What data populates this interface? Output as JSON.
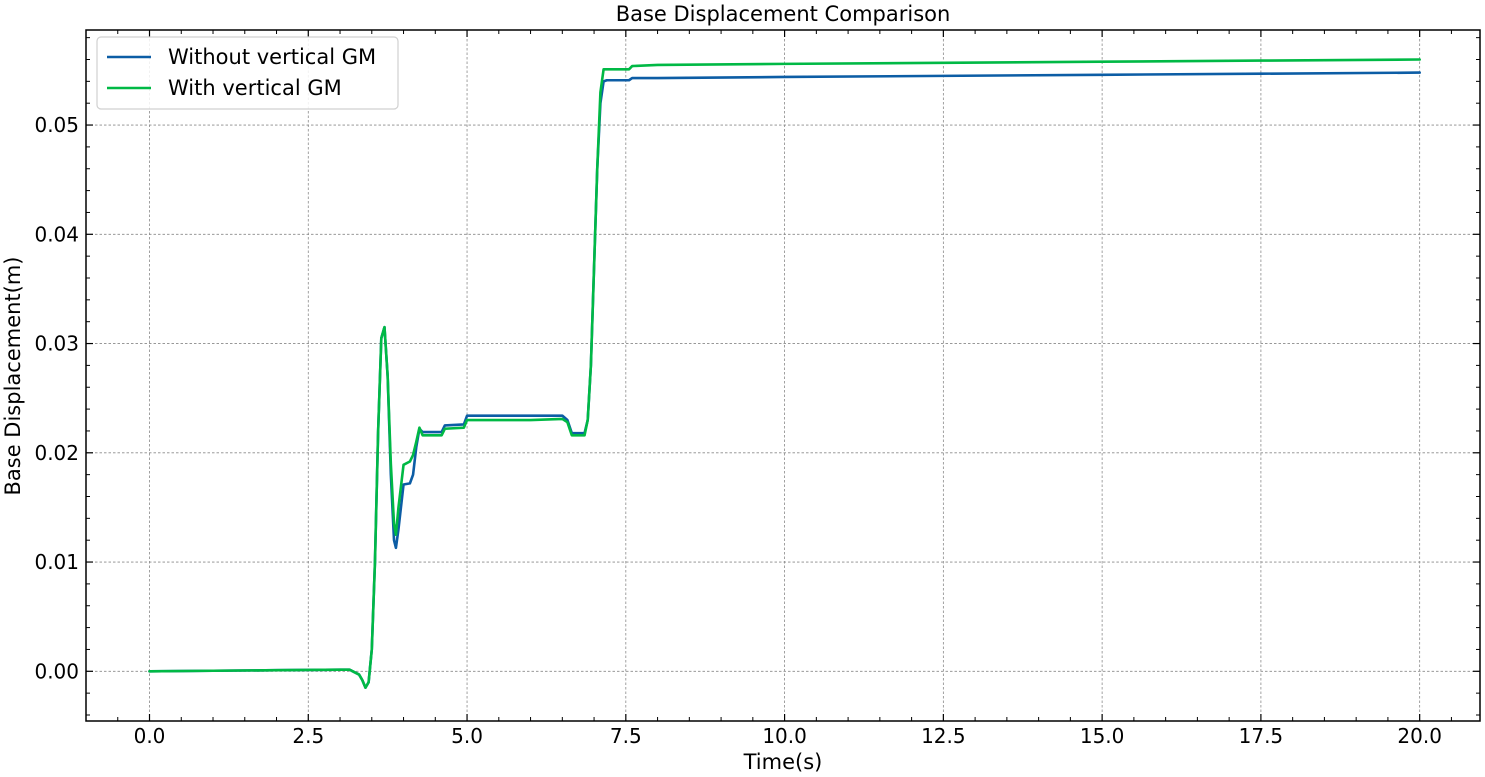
{
  "chart_data": {
    "type": "line",
    "title": "Base Displacement Comparison",
    "xlabel": "Time(s)",
    "ylabel": "Base Displacement(m)",
    "xlim": [
      -1.0,
      20.95
    ],
    "ylim": [
      -0.00455,
      0.0587
    ],
    "xticks": [
      0.0,
      2.5,
      5.0,
      7.5,
      10.0,
      12.5,
      15.0,
      17.5,
      20.0
    ],
    "xtick_labels": [
      "0.0",
      "2.5",
      "5.0",
      "7.5",
      "10.0",
      "12.5",
      "15.0",
      "17.5",
      "20.0"
    ],
    "yticks": [
      0.0,
      0.01,
      0.02,
      0.03,
      0.04,
      0.05
    ],
    "ytick_labels": [
      "0.00",
      "0.01",
      "0.02",
      "0.03",
      "0.04",
      "0.05"
    ],
    "grid": true,
    "legend_position": "top-left",
    "series": [
      {
        "name": "Without vertical GM",
        "color": "#0C5DA5",
        "points": [
          [
            0.0,
            0.0
          ],
          [
            1.0,
            5e-05
          ],
          [
            2.0,
            0.0001
          ],
          [
            3.0,
            0.00015
          ],
          [
            3.15,
            0.00015
          ],
          [
            3.2,
            0.0
          ],
          [
            3.3,
            -0.0003
          ],
          [
            3.35,
            -0.0008
          ],
          [
            3.4,
            -0.0015
          ],
          [
            3.45,
            -0.001
          ],
          [
            3.5,
            0.002
          ],
          [
            3.55,
            0.01
          ],
          [
            3.6,
            0.022
          ],
          [
            3.65,
            0.0305
          ],
          [
            3.7,
            0.0315
          ],
          [
            3.75,
            0.027
          ],
          [
            3.8,
            0.018
          ],
          [
            3.85,
            0.012
          ],
          [
            3.88,
            0.0113
          ],
          [
            3.92,
            0.013
          ],
          [
            4.0,
            0.0171
          ],
          [
            4.1,
            0.0172
          ],
          [
            4.15,
            0.018
          ],
          [
            4.2,
            0.0205
          ],
          [
            4.25,
            0.0222
          ],
          [
            4.3,
            0.0219
          ],
          [
            4.6,
            0.0219
          ],
          [
            4.65,
            0.0225
          ],
          [
            4.95,
            0.0226
          ],
          [
            5.0,
            0.0234
          ],
          [
            5.5,
            0.0234
          ],
          [
            6.0,
            0.0234
          ],
          [
            6.5,
            0.0234
          ],
          [
            6.58,
            0.023
          ],
          [
            6.65,
            0.0218
          ],
          [
            6.85,
            0.0218
          ],
          [
            6.9,
            0.023
          ],
          [
            6.95,
            0.028
          ],
          [
            7.0,
            0.037
          ],
          [
            7.05,
            0.046
          ],
          [
            7.1,
            0.052
          ],
          [
            7.15,
            0.054
          ],
          [
            7.2,
            0.0541
          ],
          [
            7.55,
            0.0541
          ],
          [
            7.6,
            0.0543
          ],
          [
            8.0,
            0.0543
          ],
          [
            10.0,
            0.0544
          ],
          [
            12.5,
            0.0545
          ],
          [
            15.0,
            0.0546
          ],
          [
            17.5,
            0.0547
          ],
          [
            20.0,
            0.0548
          ]
        ]
      },
      {
        "name": "With vertical GM",
        "color": "#00B945",
        "points": [
          [
            0.0,
            0.0
          ],
          [
            1.0,
            5e-05
          ],
          [
            2.0,
            0.0001
          ],
          [
            3.0,
            0.00015
          ],
          [
            3.15,
            0.00015
          ],
          [
            3.2,
            0.0
          ],
          [
            3.3,
            -0.0003
          ],
          [
            3.35,
            -0.0008
          ],
          [
            3.4,
            -0.0015
          ],
          [
            3.45,
            -0.001
          ],
          [
            3.5,
            0.002
          ],
          [
            3.55,
            0.01
          ],
          [
            3.6,
            0.022
          ],
          [
            3.65,
            0.0305
          ],
          [
            3.7,
            0.0315
          ],
          [
            3.75,
            0.027
          ],
          [
            3.8,
            0.019
          ],
          [
            3.85,
            0.0135
          ],
          [
            3.88,
            0.0125
          ],
          [
            3.92,
            0.015
          ],
          [
            4.0,
            0.0189
          ],
          [
            4.1,
            0.0192
          ],
          [
            4.15,
            0.0198
          ],
          [
            4.2,
            0.021
          ],
          [
            4.25,
            0.0223
          ],
          [
            4.3,
            0.0216
          ],
          [
            4.6,
            0.0216
          ],
          [
            4.65,
            0.0222
          ],
          [
            4.95,
            0.0223
          ],
          [
            5.0,
            0.023
          ],
          [
            5.5,
            0.023
          ],
          [
            6.0,
            0.023
          ],
          [
            6.5,
            0.0231
          ],
          [
            6.58,
            0.0228
          ],
          [
            6.65,
            0.0216
          ],
          [
            6.85,
            0.0216
          ],
          [
            6.9,
            0.023
          ],
          [
            6.95,
            0.028
          ],
          [
            7.0,
            0.037
          ],
          [
            7.05,
            0.046
          ],
          [
            7.1,
            0.053
          ],
          [
            7.15,
            0.0551
          ],
          [
            7.2,
            0.0551
          ],
          [
            7.55,
            0.0551
          ],
          [
            7.6,
            0.0554
          ],
          [
            8.0,
            0.0555
          ],
          [
            10.0,
            0.0556
          ],
          [
            12.5,
            0.0557
          ],
          [
            15.0,
            0.0558
          ],
          [
            17.5,
            0.0559
          ],
          [
            20.0,
            0.056
          ]
        ]
      }
    ]
  }
}
